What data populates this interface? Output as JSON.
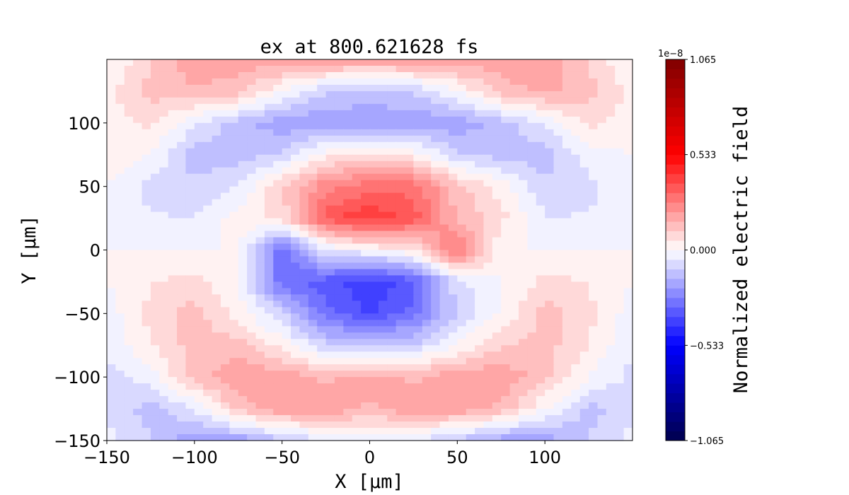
{
  "chart_data": {
    "type": "heatmap",
    "title": "ex at 800.621628 fs",
    "xlabel": "X [μm]",
    "ylabel": "Y [μm]",
    "xlim": [
      -150,
      150
    ],
    "ylim": [
      -150,
      150
    ],
    "xticks": [
      -150,
      -100,
      -50,
      0,
      50,
      100
    ],
    "yticks": [
      -150,
      -100,
      -50,
      0,
      50,
      100
    ],
    "xtick_labels": [
      "−150",
      "−100",
      "−50",
      "0",
      "50",
      "100"
    ],
    "ytick_labels": [
      "−150",
      "−100",
      "−50",
      "0",
      "50",
      "100"
    ],
    "grid": false,
    "colormap": "seismic",
    "levels": 40,
    "colorbar": {
      "label": "Normalized electric field",
      "offset_label": "1e−8",
      "range": [
        -1.065,
        1.065
      ],
      "ticks": [
        1.065,
        0.533,
        0.0,
        -0.533,
        -1.065
      ],
      "tick_labels": [
        "1.065",
        "0.533",
        "0.000",
        "−0.533",
        "−1.065"
      ],
      "position": "right"
    },
    "value_unit_scale": "1e-8",
    "grid_x": [
      -150,
      -125,
      -100,
      -75,
      -50,
      -25,
      0,
      25,
      50,
      75,
      100,
      125,
      150
    ],
    "grid_y": [
      150,
      125,
      100,
      75,
      50,
      25,
      0,
      -25,
      -50,
      -75,
      -100,
      -125,
      -150
    ],
    "values": [
      [
        0.0,
        0.1,
        0.2,
        0.2,
        0.2,
        0.2,
        0.2,
        0.2,
        0.2,
        0.2,
        0.2,
        0.1,
        0.0
      ],
      [
        0.03,
        0.13,
        0.15,
        0.13,
        0.0,
        -0.1,
        -0.13,
        -0.1,
        0.0,
        0.13,
        0.18,
        0.13,
        0.03
      ],
      [
        0.03,
        0.07,
        -0.05,
        -0.13,
        -0.2,
        -0.2,
        -0.2,
        -0.2,
        -0.2,
        -0.13,
        -0.05,
        0.07,
        0.03
      ],
      [
        0.03,
        0.0,
        -0.13,
        -0.13,
        -0.1,
        0.03,
        0.08,
        0.03,
        -0.1,
        -0.13,
        -0.13,
        -0.03,
        0.0
      ],
      [
        0.0,
        -0.07,
        -0.1,
        -0.05,
        0.1,
        0.25,
        0.3,
        0.3,
        0.13,
        0.03,
        -0.1,
        -0.07,
        0.0
      ],
      [
        0.0,
        -0.05,
        -0.05,
        0.03,
        0.07,
        0.35,
        0.42,
        0.35,
        0.15,
        0.07,
        -0.05,
        -0.05,
        0.0
      ],
      [
        0.0,
        0.0,
        0.0,
        0.0,
        -0.3,
        -0.05,
        0.0,
        0.05,
        0.3,
        0.0,
        0.0,
        0.0,
        0.0
      ],
      [
        0.0,
        0.05,
        0.07,
        0.0,
        -0.3,
        -0.35,
        -0.42,
        -0.35,
        -0.07,
        0.0,
        0.07,
        0.05,
        0.0
      ],
      [
        -0.03,
        0.07,
        0.13,
        0.03,
        -0.1,
        -0.3,
        -0.38,
        -0.3,
        -0.1,
        0.0,
        0.13,
        0.07,
        -0.03
      ],
      [
        -0.05,
        0.05,
        0.13,
        0.13,
        0.03,
        -0.1,
        -0.1,
        -0.1,
        0.0,
        0.1,
        0.13,
        0.05,
        -0.05
      ],
      [
        -0.07,
        -0.03,
        0.13,
        0.2,
        0.2,
        0.15,
        0.18,
        0.15,
        0.2,
        0.2,
        0.13,
        0.0,
        -0.07
      ],
      [
        -0.07,
        -0.13,
        -0.05,
        0.13,
        0.2,
        0.2,
        0.15,
        0.2,
        0.2,
        0.15,
        0.0,
        -0.13,
        -0.07
      ],
      [
        -0.03,
        -0.1,
        -0.2,
        -0.2,
        -0.13,
        -0.05,
        -0.03,
        -0.05,
        -0.13,
        -0.2,
        -0.2,
        -0.1,
        -0.03
      ]
    ]
  }
}
